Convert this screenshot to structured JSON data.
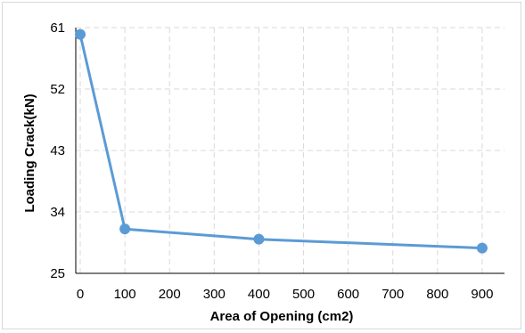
{
  "chart_data": {
    "type": "line",
    "title": "",
    "xlabel": "Area of Opening (cm2)",
    "ylabel": "Loading Crack(kN)",
    "x_ticks": [
      "0",
      "100",
      "200",
      "300",
      "400",
      "500",
      "600",
      "700",
      "800",
      "900"
    ],
    "y_ticks": [
      "25",
      "34",
      "43",
      "52",
      "61"
    ],
    "xlim": [
      -10,
      950
    ],
    "ylim": [
      25,
      61
    ],
    "grid": true,
    "legend": "none",
    "series": [
      {
        "x": [
          0,
          100,
          400,
          900
        ],
        "y": [
          60,
          31.5,
          30,
          28.7
        ]
      }
    ],
    "colors": {
      "line": "#5b9bd5",
      "grid": "#d9d9d9",
      "axis": "#000000"
    }
  }
}
